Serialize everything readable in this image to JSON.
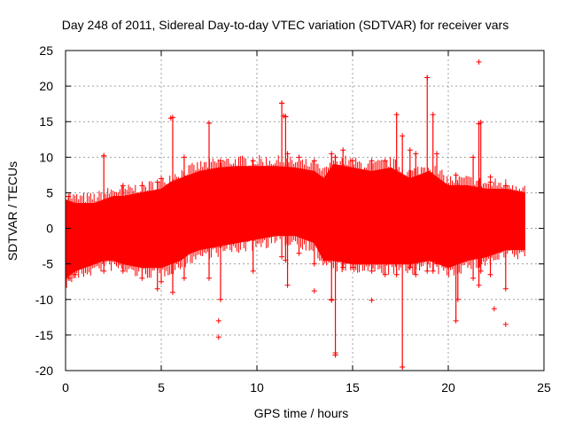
{
  "chart_data": {
    "type": "scatter",
    "title": "Day 248 of 2011, Sidereal Day-to-day VTEC variation (SDTVAR) for receiver vars",
    "xlabel": "GPS time / hours",
    "ylabel": "SDTVAR / TECUs",
    "xlim": [
      0,
      25
    ],
    "ylim": [
      -20,
      25
    ],
    "xticks": [
      "0",
      "5",
      "10",
      "15",
      "20",
      "25"
    ],
    "yticks": [
      "-20",
      "-15",
      "-10",
      "-5",
      "0",
      "5",
      "10",
      "15",
      "20",
      "25"
    ],
    "grid": true,
    "marker": "+",
    "series_color": "#ff0000",
    "envelope": {
      "x": [
        0.0,
        0.5,
        1.0,
        1.5,
        2.0,
        2.5,
        3.0,
        4.0,
        5.0,
        5.5,
        6.0,
        6.5,
        7.0,
        8.0,
        9.0,
        10.0,
        11.0,
        12.0,
        13.0,
        13.5,
        14.0,
        15.0,
        16.0,
        17.0,
        18.0,
        19.0,
        20.0,
        21.0,
        22.0,
        23.0,
        24.0
      ],
      "upper": [
        4.0,
        3.5,
        3.5,
        3.5,
        4.0,
        4.5,
        4.5,
        5.0,
        5.5,
        6.5,
        7.0,
        7.5,
        8.0,
        8.5,
        8.7,
        8.7,
        8.7,
        8.5,
        8.0,
        7.0,
        9.0,
        8.5,
        8.0,
        8.5,
        7.0,
        8.0,
        6.0,
        6.0,
        5.5,
        5.5,
        5.0
      ],
      "lower": [
        -7.0,
        -6.0,
        -5.5,
        -5.0,
        -4.5,
        -4.5,
        -5.0,
        -5.5,
        -5.5,
        -5.0,
        -4.5,
        -3.5,
        -3.0,
        -2.5,
        -2.0,
        -1.5,
        -1.0,
        -1.0,
        -2.0,
        -4.5,
        -4.5,
        -5.0,
        -5.0,
        -5.0,
        -5.0,
        -4.5,
        -5.5,
        -4.5,
        -4.0,
        -3.0,
        -3.0
      ]
    },
    "spikes": [
      [
        0.15,
        -7.0,
        4.5
      ],
      [
        0.5,
        -6.5,
        3.5
      ],
      [
        2.0,
        -6.0,
        10.2
      ],
      [
        3.0,
        -6.0,
        6.0
      ],
      [
        4.0,
        -7.0,
        6.0
      ],
      [
        4.8,
        -8.5,
        6.5
      ],
      [
        5.0,
        -7.5,
        7.0
      ],
      [
        5.6,
        -9.0,
        15.6
      ],
      [
        6.2,
        -7.0,
        10.0
      ],
      [
        7.5,
        -7.0,
        14.8
      ],
      [
        8.1,
        -10.0,
        9.5
      ],
      [
        9.8,
        -6.0,
        9.5
      ],
      [
        11.3,
        -4.0,
        17.6
      ],
      [
        11.5,
        -4.5,
        15.7
      ],
      [
        11.6,
        -8.0,
        10.5
      ],
      [
        12.2,
        -3.5,
        10.0
      ],
      [
        13.0,
        -5.0,
        9.5
      ],
      [
        13.9,
        -10.0,
        10.5
      ],
      [
        14.1,
        -17.8,
        10.0
      ],
      [
        14.5,
        -5.5,
        11.0
      ],
      [
        15.0,
        -5.5,
        9.5
      ],
      [
        16.0,
        -6.0,
        9.5
      ],
      [
        16.7,
        -6.5,
        9.5
      ],
      [
        17.3,
        -6.5,
        16.0
      ],
      [
        17.6,
        -19.5,
        13.0
      ],
      [
        18.0,
        -5.5,
        11.0
      ],
      [
        18.3,
        -6.5,
        10.5
      ],
      [
        18.9,
        -6.0,
        21.2
      ],
      [
        19.2,
        -6.0,
        16.0
      ],
      [
        19.4,
        -5.0,
        10.5
      ],
      [
        20.4,
        -13.0,
        7.5
      ],
      [
        20.5,
        -10.0,
        6.0
      ],
      [
        21.3,
        -7.0,
        10.0
      ],
      [
        21.6,
        -8.0,
        14.7
      ],
      [
        21.7,
        -6.0,
        14.9
      ],
      [
        22.2,
        -6.5,
        6.5
      ],
      [
        23.0,
        -8.5,
        6.0
      ]
    ],
    "outliers": [
      [
        2.0,
        10.2
      ],
      [
        5.5,
        15.5
      ],
      [
        7.5,
        14.8
      ],
      [
        8.0,
        -13.0
      ],
      [
        8.0,
        -15.3
      ],
      [
        11.3,
        17.6
      ],
      [
        11.4,
        15.8
      ],
      [
        11.5,
        15.7
      ],
      [
        13.0,
        -8.8
      ],
      [
        13.9,
        -10.1
      ],
      [
        14.1,
        -17.5
      ],
      [
        14.1,
        -17.8
      ],
      [
        16.0,
        -10.1
      ],
      [
        17.6,
        -19.5
      ],
      [
        18.9,
        21.2
      ],
      [
        21.6,
        23.4
      ],
      [
        21.6,
        14.7
      ],
      [
        22.2,
        7.2
      ],
      [
        22.4,
        -11.3
      ],
      [
        23.0,
        -13.5
      ]
    ]
  }
}
